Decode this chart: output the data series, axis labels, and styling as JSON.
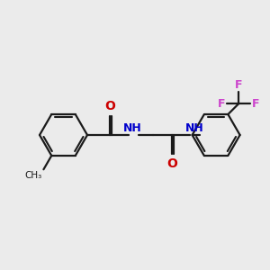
{
  "background_color": "#ebebeb",
  "bond_color": "#1a1a1a",
  "oxygen_color": "#cc0000",
  "nitrogen_color": "#0000cc",
  "fluorine_color": "#cc44cc",
  "carbon_color": "#1a1a1a",
  "line_width": 1.6,
  "figsize": [
    3.0,
    3.0
  ],
  "dpi": 100,
  "xlim": [
    0,
    10
  ],
  "ylim": [
    0,
    10
  ]
}
